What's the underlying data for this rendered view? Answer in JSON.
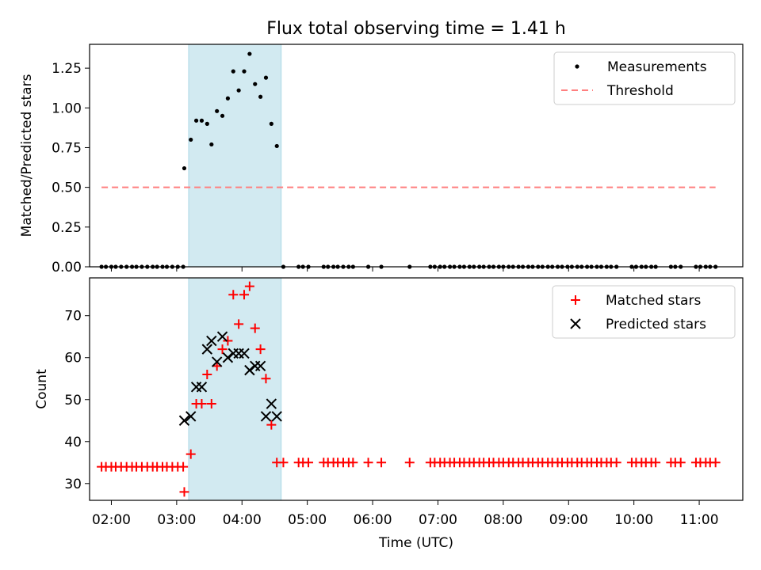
{
  "title": "Flux total observing time = 1.41 h",
  "colors": {
    "shade": "#add8e6",
    "threshold": "#ff7f7f",
    "measurement": "#000000",
    "matched": "#ff0000",
    "predicted": "#000000"
  },
  "chart_data": [
    {
      "type": "scatter",
      "ylabel": "Matched/Predicted stars",
      "ylim": [
        0,
        1.4
      ],
      "yticks": [
        "0.00",
        "0.25",
        "0.50",
        "0.75",
        "1.00",
        "1.25"
      ],
      "shaded_span": [
        "03:11",
        "04:36"
      ],
      "legend_position": "top-right",
      "series": [
        {
          "name": "Measurements",
          "marker": "dot",
          "points": [
            {
              "x": "01:51",
              "y": 0
            },
            {
              "x": "01:55",
              "y": 0
            },
            {
              "x": "02:00",
              "y": 0
            },
            {
              "x": "02:04",
              "y": 0
            },
            {
              "x": "02:09",
              "y": 0
            },
            {
              "x": "02:14",
              "y": 0
            },
            {
              "x": "02:19",
              "y": 0
            },
            {
              "x": "02:23",
              "y": 0
            },
            {
              "x": "02:28",
              "y": 0
            },
            {
              "x": "02:33",
              "y": 0
            },
            {
              "x": "02:38",
              "y": 0
            },
            {
              "x": "02:42",
              "y": 0
            },
            {
              "x": "02:47",
              "y": 0
            },
            {
              "x": "02:51",
              "y": 0
            },
            {
              "x": "02:56",
              "y": 0
            },
            {
              "x": "03:01",
              "y": 0
            },
            {
              "x": "03:06",
              "y": 0
            },
            {
              "x": "03:07",
              "y": 0.62
            },
            {
              "x": "03:13",
              "y": 0.8
            },
            {
              "x": "03:18",
              "y": 0.92
            },
            {
              "x": "03:23",
              "y": 0.92
            },
            {
              "x": "03:28",
              "y": 0.9
            },
            {
              "x": "03:32",
              "y": 0.77
            },
            {
              "x": "03:37",
              "y": 0.98
            },
            {
              "x": "03:42",
              "y": 0.95
            },
            {
              "x": "03:47",
              "y": 1.06
            },
            {
              "x": "03:52",
              "y": 1.23
            },
            {
              "x": "03:57",
              "y": 1.11
            },
            {
              "x": "04:02",
              "y": 1.23
            },
            {
              "x": "04:07",
              "y": 1.34
            },
            {
              "x": "04:12",
              "y": 1.15
            },
            {
              "x": "04:17",
              "y": 1.07
            },
            {
              "x": "04:22",
              "y": 1.19
            },
            {
              "x": "04:27",
              "y": 0.9
            },
            {
              "x": "04:32",
              "y": 0.76
            },
            {
              "x": "04:38",
              "y": 0
            },
            {
              "x": "04:52",
              "y": 0
            },
            {
              "x": "04:56",
              "y": 0
            },
            {
              "x": "05:01",
              "y": 0
            },
            {
              "x": "05:15",
              "y": 0
            },
            {
              "x": "05:19",
              "y": 0
            },
            {
              "x": "05:24",
              "y": 0
            },
            {
              "x": "05:28",
              "y": 0
            },
            {
              "x": "05:33",
              "y": 0
            },
            {
              "x": "05:38",
              "y": 0
            },
            {
              "x": "05:42",
              "y": 0
            },
            {
              "x": "05:56",
              "y": 0
            },
            {
              "x": "06:08",
              "y": 0
            },
            {
              "x": "06:34",
              "y": 0
            },
            {
              "x": "06:53",
              "y": 0
            },
            {
              "x": "06:57",
              "y": 0
            },
            {
              "x": "07:02",
              "y": 0
            },
            {
              "x": "07:06",
              "y": 0
            },
            {
              "x": "07:11",
              "y": 0
            },
            {
              "x": "07:15",
              "y": 0
            },
            {
              "x": "07:20",
              "y": 0
            },
            {
              "x": "07:24",
              "y": 0
            },
            {
              "x": "07:29",
              "y": 0
            },
            {
              "x": "07:33",
              "y": 0
            },
            {
              "x": "07:38",
              "y": 0
            },
            {
              "x": "07:42",
              "y": 0
            },
            {
              "x": "07:47",
              "y": 0
            },
            {
              "x": "07:51",
              "y": 0
            },
            {
              "x": "07:56",
              "y": 0
            },
            {
              "x": "08:00",
              "y": 0
            },
            {
              "x": "08:05",
              "y": 0
            },
            {
              "x": "08:09",
              "y": 0
            },
            {
              "x": "08:14",
              "y": 0
            },
            {
              "x": "08:18",
              "y": 0
            },
            {
              "x": "08:23",
              "y": 0
            },
            {
              "x": "08:27",
              "y": 0
            },
            {
              "x": "08:32",
              "y": 0
            },
            {
              "x": "08:36",
              "y": 0
            },
            {
              "x": "08:41",
              "y": 0
            },
            {
              "x": "08:45",
              "y": 0
            },
            {
              "x": "08:50",
              "y": 0
            },
            {
              "x": "08:54",
              "y": 0
            },
            {
              "x": "08:59",
              "y": 0
            },
            {
              "x": "09:03",
              "y": 0
            },
            {
              "x": "09:08",
              "y": 0
            },
            {
              "x": "09:12",
              "y": 0
            },
            {
              "x": "09:17",
              "y": 0
            },
            {
              "x": "09:21",
              "y": 0
            },
            {
              "x": "09:26",
              "y": 0
            },
            {
              "x": "09:30",
              "y": 0
            },
            {
              "x": "09:35",
              "y": 0
            },
            {
              "x": "09:39",
              "y": 0
            },
            {
              "x": "09:44",
              "y": 0
            },
            {
              "x": "09:58",
              "y": 0
            },
            {
              "x": "10:02",
              "y": 0
            },
            {
              "x": "10:07",
              "y": 0
            },
            {
              "x": "10:11",
              "y": 0
            },
            {
              "x": "10:16",
              "y": 0
            },
            {
              "x": "10:20",
              "y": 0
            },
            {
              "x": "10:34",
              "y": 0
            },
            {
              "x": "10:38",
              "y": 0
            },
            {
              "x": "10:43",
              "y": 0
            },
            {
              "x": "10:57",
              "y": 0
            },
            {
              "x": "11:01",
              "y": 0
            },
            {
              "x": "11:06",
              "y": 0
            },
            {
              "x": "11:10",
              "y": 0
            },
            {
              "x": "11:15",
              "y": 0
            }
          ]
        },
        {
          "name": "Threshold",
          "marker": "dashed-line",
          "points": [
            {
              "x": "01:51",
              "y": 0.5
            },
            {
              "x": "11:15",
              "y": 0.5
            }
          ]
        }
      ]
    },
    {
      "type": "scatter",
      "xlabel": "Time (UTC)",
      "ylabel": "Count",
      "ylim": [
        26,
        79
      ],
      "yticks": [
        "30",
        "40",
        "50",
        "60",
        "70"
      ],
      "xticks": [
        "02:00",
        "03:00",
        "04:00",
        "05:00",
        "06:00",
        "07:00",
        "08:00",
        "09:00",
        "10:00",
        "11:00"
      ],
      "shaded_span": [
        "03:11",
        "04:36"
      ],
      "legend_position": "top-right",
      "series": [
        {
          "name": "Matched stars",
          "marker": "plus",
          "points": [
            {
              "x": "01:51",
              "y": 34
            },
            {
              "x": "01:55",
              "y": 34
            },
            {
              "x": "02:00",
              "y": 34
            },
            {
              "x": "02:04",
              "y": 34
            },
            {
              "x": "02:09",
              "y": 34
            },
            {
              "x": "02:14",
              "y": 34
            },
            {
              "x": "02:19",
              "y": 34
            },
            {
              "x": "02:23",
              "y": 34
            },
            {
              "x": "02:28",
              "y": 34
            },
            {
              "x": "02:33",
              "y": 34
            },
            {
              "x": "02:38",
              "y": 34
            },
            {
              "x": "02:42",
              "y": 34
            },
            {
              "x": "02:47",
              "y": 34
            },
            {
              "x": "02:51",
              "y": 34
            },
            {
              "x": "02:56",
              "y": 34
            },
            {
              "x": "03:01",
              "y": 34
            },
            {
              "x": "03:06",
              "y": 34
            },
            {
              "x": "03:07",
              "y": 28
            },
            {
              "x": "03:13",
              "y": 37
            },
            {
              "x": "03:18",
              "y": 49
            },
            {
              "x": "03:23",
              "y": 49
            },
            {
              "x": "03:28",
              "y": 56
            },
            {
              "x": "03:32",
              "y": 49
            },
            {
              "x": "03:37",
              "y": 58
            },
            {
              "x": "03:42",
              "y": 62
            },
            {
              "x": "03:47",
              "y": 64
            },
            {
              "x": "03:52",
              "y": 75
            },
            {
              "x": "03:57",
              "y": 68
            },
            {
              "x": "04:02",
              "y": 75
            },
            {
              "x": "04:07",
              "y": 77
            },
            {
              "x": "04:12",
              "y": 67
            },
            {
              "x": "04:17",
              "y": 62
            },
            {
              "x": "04:22",
              "y": 55
            },
            {
              "x": "04:27",
              "y": 44
            },
            {
              "x": "04:32",
              "y": 35
            },
            {
              "x": "04:38",
              "y": 35
            },
            {
              "x": "04:52",
              "y": 35
            },
            {
              "x": "04:56",
              "y": 35
            },
            {
              "x": "05:01",
              "y": 35
            },
            {
              "x": "05:15",
              "y": 35
            },
            {
              "x": "05:19",
              "y": 35
            },
            {
              "x": "05:24",
              "y": 35
            },
            {
              "x": "05:28",
              "y": 35
            },
            {
              "x": "05:33",
              "y": 35
            },
            {
              "x": "05:38",
              "y": 35
            },
            {
              "x": "05:42",
              "y": 35
            },
            {
              "x": "05:56",
              "y": 35
            },
            {
              "x": "06:08",
              "y": 35
            },
            {
              "x": "06:34",
              "y": 35
            },
            {
              "x": "06:53",
              "y": 35
            },
            {
              "x": "06:57",
              "y": 35
            },
            {
              "x": "07:02",
              "y": 35
            },
            {
              "x": "07:06",
              "y": 35
            },
            {
              "x": "07:11",
              "y": 35
            },
            {
              "x": "07:15",
              "y": 35
            },
            {
              "x": "07:20",
              "y": 35
            },
            {
              "x": "07:24",
              "y": 35
            },
            {
              "x": "07:29",
              "y": 35
            },
            {
              "x": "07:33",
              "y": 35
            },
            {
              "x": "07:38",
              "y": 35
            },
            {
              "x": "07:42",
              "y": 35
            },
            {
              "x": "07:47",
              "y": 35
            },
            {
              "x": "07:51",
              "y": 35
            },
            {
              "x": "07:56",
              "y": 35
            },
            {
              "x": "08:00",
              "y": 35
            },
            {
              "x": "08:05",
              "y": 35
            },
            {
              "x": "08:09",
              "y": 35
            },
            {
              "x": "08:14",
              "y": 35
            },
            {
              "x": "08:18",
              "y": 35
            },
            {
              "x": "08:23",
              "y": 35
            },
            {
              "x": "08:27",
              "y": 35
            },
            {
              "x": "08:32",
              "y": 35
            },
            {
              "x": "08:36",
              "y": 35
            },
            {
              "x": "08:41",
              "y": 35
            },
            {
              "x": "08:45",
              "y": 35
            },
            {
              "x": "08:50",
              "y": 35
            },
            {
              "x": "08:54",
              "y": 35
            },
            {
              "x": "08:59",
              "y": 35
            },
            {
              "x": "09:03",
              "y": 35
            },
            {
              "x": "09:08",
              "y": 35
            },
            {
              "x": "09:12",
              "y": 35
            },
            {
              "x": "09:17",
              "y": 35
            },
            {
              "x": "09:21",
              "y": 35
            },
            {
              "x": "09:26",
              "y": 35
            },
            {
              "x": "09:30",
              "y": 35
            },
            {
              "x": "09:35",
              "y": 35
            },
            {
              "x": "09:39",
              "y": 35
            },
            {
              "x": "09:44",
              "y": 35
            },
            {
              "x": "09:58",
              "y": 35
            },
            {
              "x": "10:02",
              "y": 35
            },
            {
              "x": "10:07",
              "y": 35
            },
            {
              "x": "10:11",
              "y": 35
            },
            {
              "x": "10:16",
              "y": 35
            },
            {
              "x": "10:20",
              "y": 35
            },
            {
              "x": "10:34",
              "y": 35
            },
            {
              "x": "10:38",
              "y": 35
            },
            {
              "x": "10:43",
              "y": 35
            },
            {
              "x": "10:57",
              "y": 35
            },
            {
              "x": "11:01",
              "y": 35
            },
            {
              "x": "11:06",
              "y": 35
            },
            {
              "x": "11:10",
              "y": 35
            },
            {
              "x": "11:15",
              "y": 35
            }
          ]
        },
        {
          "name": "Predicted stars",
          "marker": "x",
          "points": [
            {
              "x": "03:07",
              "y": 45
            },
            {
              "x": "03:13",
              "y": 46
            },
            {
              "x": "03:18",
              "y": 53
            },
            {
              "x": "03:23",
              "y": 53
            },
            {
              "x": "03:28",
              "y": 62
            },
            {
              "x": "03:32",
              "y": 64
            },
            {
              "x": "03:37",
              "y": 59
            },
            {
              "x": "03:42",
              "y": 65
            },
            {
              "x": "03:47",
              "y": 60
            },
            {
              "x": "03:52",
              "y": 61
            },
            {
              "x": "03:57",
              "y": 61
            },
            {
              "x": "04:02",
              "y": 61
            },
            {
              "x": "04:07",
              "y": 57
            },
            {
              "x": "04:12",
              "y": 58
            },
            {
              "x": "04:17",
              "y": 58
            },
            {
              "x": "04:22",
              "y": 46
            },
            {
              "x": "04:27",
              "y": 49
            },
            {
              "x": "04:32",
              "y": 46
            }
          ]
        }
      ]
    }
  ]
}
